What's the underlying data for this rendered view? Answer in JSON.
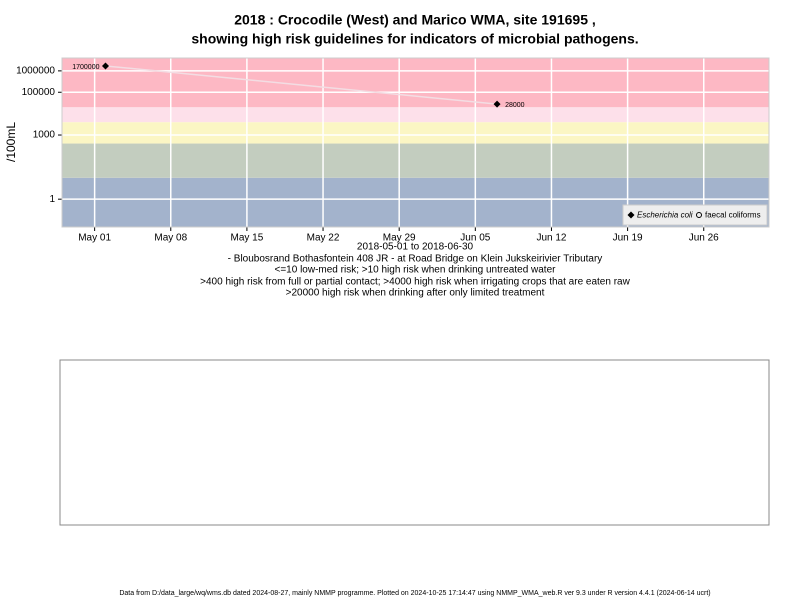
{
  "chart_data": {
    "type": "scatter",
    "title": "2018 : Crocodile (West) and Marico WMA, site 191695 ,",
    "subtitle": "showing high risk guidelines for indicators of microbial pathogens.",
    "ylabel": "/100mL",
    "xlabel": "2018-05-01 to 2018-06-30",
    "notes": [
      "- Bloubosrand Bothasfontein 408 JR - at Road Bridge on Klein Jukskeirivier Tributary",
      "<=10 low-med risk; >10 high risk when drinking untreated water",
      ">400 high risk from full or partial contact; >4000 high risk when irrigating crops that are eaten raw",
      ">20000 high risk when drinking after only limited treatment"
    ],
    "footer": "Data from D:/data_large/wq/wms.db dated 2024-08-27, mainly NMMP programme. Plotted on 2024-10-25 17:14:47 using NMMP_WMA_web.R ver 9.3 under R version 4.4.1 (2024-06-14 ucrt)",
    "log_y": true,
    "grid": true,
    "legend": "bottom-right",
    "x": [
      "2018-05-02",
      "2018-06-07"
    ],
    "series": [
      {
        "name": "Escherichia coli",
        "color": "#000000",
        "marker": "diamond",
        "line_color": "#f3dde3",
        "values": [
          1700000,
          28000
        ]
      },
      {
        "name": "faecal coliforms",
        "color": "#000000",
        "marker": "circle",
        "values": [
          null,
          null
        ]
      }
    ],
    "xlim": [
      "2018-04-28",
      "2018-07-02"
    ],
    "xticks": [
      {
        "value": "2018-05-01",
        "label": "May 01"
      },
      {
        "value": "2018-05-08",
        "label": "May 08"
      },
      {
        "value": "2018-05-15",
        "label": "May 15"
      },
      {
        "value": "2018-05-22",
        "label": "May 22"
      },
      {
        "value": "2018-05-29",
        "label": "May 29"
      },
      {
        "value": "2018-06-05",
        "label": "Jun 05"
      },
      {
        "value": "2018-06-12",
        "label": "Jun 12"
      },
      {
        "value": "2018-06-19",
        "label": "Jun 19"
      },
      {
        "value": "2018-06-26",
        "label": "Jun 26"
      }
    ],
    "ylim": [
      0.05,
      4000000
    ],
    "yticks": [
      1,
      1000,
      100000,
      1000000
    ],
    "band_breaks": [
      10,
      400,
      4000,
      20000
    ],
    "band_colors": [
      "#a3b3cc",
      "#c3cdbf",
      "#fbf6c4",
      "#fde0ea",
      "#fdb8c4"
    ]
  }
}
